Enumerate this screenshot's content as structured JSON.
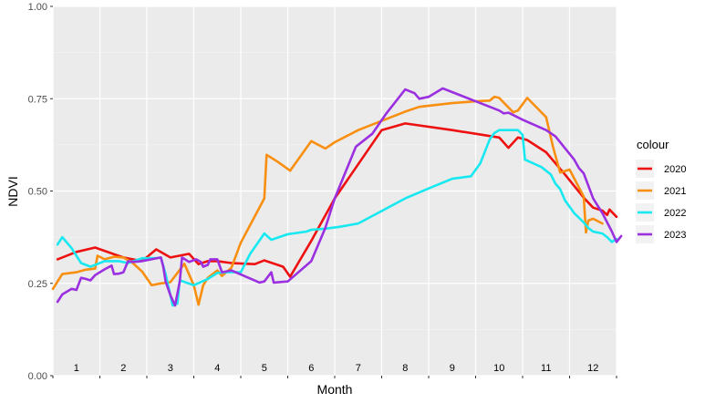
{
  "chart_data": {
    "type": "line",
    "xlabel": "Month",
    "ylabel": "NDVI",
    "xlim": [
      0.5,
      12.5
    ],
    "ylim": [
      0,
      1
    ],
    "y_ticks": [
      {
        "value": 0.0,
        "label": "0.00"
      },
      {
        "value": 0.25,
        "label": "0.25"
      },
      {
        "value": 0.5,
        "label": "0.50"
      },
      {
        "value": 0.75,
        "label": "0.75"
      },
      {
        "value": 1.0,
        "label": "1.00"
      }
    ],
    "month_labels": [
      "1",
      "2",
      "3",
      "4",
      "5",
      "6",
      "7",
      "8",
      "9",
      "10",
      "11",
      "12"
    ],
    "grid": true,
    "legend": {
      "title": "colour",
      "position": "right"
    },
    "series": [
      {
        "name": "2020",
        "color": "#ee1111",
        "points": [
          [
            0.6,
            0.315
          ],
          [
            1.0,
            0.335
          ],
          [
            1.4,
            0.347
          ],
          [
            2.0,
            0.32
          ],
          [
            2.4,
            0.31
          ],
          [
            2.7,
            0.342
          ],
          [
            3.0,
            0.32
          ],
          [
            3.4,
            0.33
          ],
          [
            3.6,
            0.302
          ],
          [
            3.8,
            0.31
          ],
          [
            4.0,
            0.31
          ],
          [
            4.3,
            0.305
          ],
          [
            4.8,
            0.302
          ],
          [
            5.0,
            0.312
          ],
          [
            5.4,
            0.295
          ],
          [
            5.55,
            0.268
          ],
          [
            6.0,
            0.365
          ],
          [
            6.5,
            0.48
          ],
          [
            7.5,
            0.665
          ],
          [
            8.0,
            0.683
          ],
          [
            9.0,
            0.665
          ],
          [
            10.0,
            0.645
          ],
          [
            10.2,
            0.617
          ],
          [
            10.4,
            0.645
          ],
          [
            10.6,
            0.638
          ],
          [
            11.0,
            0.605
          ],
          [
            11.4,
            0.545
          ],
          [
            11.8,
            0.482
          ],
          [
            12.0,
            0.455
          ],
          [
            12.2,
            0.447
          ],
          [
            12.3,
            0.435
          ],
          [
            12.35,
            0.45
          ],
          [
            12.5,
            0.43
          ]
        ]
      },
      {
        "name": "2021",
        "color": "#f98f10",
        "points": [
          [
            0.5,
            0.235
          ],
          [
            0.7,
            0.275
          ],
          [
            1.0,
            0.28
          ],
          [
            1.2,
            0.287
          ],
          [
            1.4,
            0.29
          ],
          [
            1.45,
            0.325
          ],
          [
            1.6,
            0.315
          ],
          [
            1.8,
            0.322
          ],
          [
            2.0,
            0.32
          ],
          [
            2.2,
            0.305
          ],
          [
            2.4,
            0.282
          ],
          [
            2.6,
            0.245
          ],
          [
            2.8,
            0.25
          ],
          [
            3.0,
            0.253
          ],
          [
            3.3,
            0.303
          ],
          [
            3.5,
            0.245
          ],
          [
            3.6,
            0.192
          ],
          [
            3.7,
            0.245
          ],
          [
            3.8,
            0.265
          ],
          [
            4.0,
            0.285
          ],
          [
            4.1,
            0.27
          ],
          [
            4.3,
            0.292
          ],
          [
            4.5,
            0.36
          ],
          [
            5.0,
            0.48
          ],
          [
            5.05,
            0.598
          ],
          [
            5.3,
            0.578
          ],
          [
            5.55,
            0.555
          ],
          [
            6.0,
            0.635
          ],
          [
            6.3,
            0.615
          ],
          [
            6.5,
            0.632
          ],
          [
            7.0,
            0.665
          ],
          [
            7.5,
            0.69
          ],
          [
            8.0,
            0.715
          ],
          [
            8.3,
            0.728
          ],
          [
            9.0,
            0.738
          ],
          [
            9.5,
            0.743
          ],
          [
            9.8,
            0.745
          ],
          [
            9.9,
            0.755
          ],
          [
            10.0,
            0.752
          ],
          [
            10.3,
            0.713
          ],
          [
            10.4,
            0.718
          ],
          [
            10.6,
            0.752
          ],
          [
            11.0,
            0.7
          ],
          [
            11.15,
            0.618
          ],
          [
            11.3,
            0.55
          ],
          [
            11.5,
            0.558
          ],
          [
            11.8,
            0.485
          ],
          [
            11.85,
            0.388
          ],
          [
            11.9,
            0.42
          ],
          [
            12.0,
            0.425
          ],
          [
            12.2,
            0.412
          ]
        ]
      },
      {
        "name": "2022",
        "color": "#18e8f0",
        "points": [
          [
            0.6,
            0.355
          ],
          [
            0.7,
            0.375
          ],
          [
            0.9,
            0.345
          ],
          [
            1.1,
            0.305
          ],
          [
            1.3,
            0.295
          ],
          [
            1.6,
            0.31
          ],
          [
            1.9,
            0.31
          ],
          [
            2.1,
            0.305
          ],
          [
            2.4,
            0.318
          ],
          [
            2.7,
            0.318
          ],
          [
            2.8,
            0.32
          ],
          [
            2.9,
            0.275
          ],
          [
            3.0,
            0.218
          ],
          [
            3.05,
            0.19
          ],
          [
            3.15,
            0.195
          ],
          [
            3.2,
            0.258
          ],
          [
            3.5,
            0.245
          ],
          [
            3.8,
            0.262
          ],
          [
            4.0,
            0.278
          ],
          [
            4.2,
            0.28
          ],
          [
            4.5,
            0.28
          ],
          [
            4.7,
            0.33
          ],
          [
            5.0,
            0.385
          ],
          [
            5.15,
            0.368
          ],
          [
            5.5,
            0.383
          ],
          [
            5.9,
            0.39
          ],
          [
            6.0,
            0.395
          ],
          [
            6.3,
            0.398
          ],
          [
            6.6,
            0.403
          ],
          [
            7.0,
            0.412
          ],
          [
            8.0,
            0.48
          ],
          [
            8.5,
            0.507
          ],
          [
            9.0,
            0.533
          ],
          [
            9.4,
            0.54
          ],
          [
            9.6,
            0.575
          ],
          [
            9.8,
            0.64
          ],
          [
            9.9,
            0.657
          ],
          [
            10.0,
            0.665
          ],
          [
            10.2,
            0.665
          ],
          [
            10.4,
            0.665
          ],
          [
            10.5,
            0.652
          ],
          [
            10.55,
            0.585
          ],
          [
            10.9,
            0.565
          ],
          [
            11.1,
            0.545
          ],
          [
            11.2,
            0.52
          ],
          [
            11.3,
            0.505
          ],
          [
            11.4,
            0.475
          ],
          [
            11.6,
            0.44
          ],
          [
            11.8,
            0.415
          ],
          [
            11.9,
            0.4
          ],
          [
            12.0,
            0.39
          ],
          [
            12.2,
            0.385
          ],
          [
            12.3,
            0.375
          ],
          [
            12.4,
            0.362
          ],
          [
            12.5,
            0.37
          ]
        ]
      },
      {
        "name": "2023",
        "color": "#9b30e0",
        "points": [
          [
            0.6,
            0.2
          ],
          [
            0.7,
            0.22
          ],
          [
            0.9,
            0.235
          ],
          [
            1.0,
            0.232
          ],
          [
            1.1,
            0.265
          ],
          [
            1.2,
            0.262
          ],
          [
            1.3,
            0.258
          ],
          [
            1.4,
            0.272
          ],
          [
            1.6,
            0.288
          ],
          [
            1.75,
            0.298
          ],
          [
            1.8,
            0.275
          ],
          [
            1.9,
            0.276
          ],
          [
            2.0,
            0.28
          ],
          [
            2.1,
            0.31
          ],
          [
            2.2,
            0.308
          ],
          [
            2.4,
            0.31
          ],
          [
            2.6,
            0.315
          ],
          [
            2.8,
            0.32
          ],
          [
            2.85,
            0.295
          ],
          [
            2.9,
            0.255
          ],
          [
            3.0,
            0.218
          ],
          [
            3.1,
            0.19
          ],
          [
            3.2,
            0.255
          ],
          [
            3.25,
            0.32
          ],
          [
            3.4,
            0.308
          ],
          [
            3.55,
            0.315
          ],
          [
            3.65,
            0.308
          ],
          [
            3.7,
            0.295
          ],
          [
            3.8,
            0.3
          ],
          [
            3.85,
            0.315
          ],
          [
            4.0,
            0.315
          ],
          [
            4.1,
            0.28
          ],
          [
            4.3,
            0.285
          ],
          [
            4.9,
            0.252
          ],
          [
            5.0,
            0.255
          ],
          [
            5.15,
            0.28
          ],
          [
            5.2,
            0.252
          ],
          [
            5.5,
            0.255
          ],
          [
            6.0,
            0.31
          ],
          [
            6.3,
            0.4
          ],
          [
            6.5,
            0.48
          ],
          [
            6.95,
            0.62
          ],
          [
            7.1,
            0.635
          ],
          [
            7.3,
            0.655
          ],
          [
            7.6,
            0.71
          ],
          [
            8.0,
            0.775
          ],
          [
            8.2,
            0.765
          ],
          [
            8.3,
            0.75
          ],
          [
            8.5,
            0.755
          ],
          [
            8.8,
            0.778
          ],
          [
            9.0,
            0.768
          ],
          [
            9.5,
            0.743
          ],
          [
            10.0,
            0.718
          ],
          [
            10.1,
            0.71
          ],
          [
            10.2,
            0.712
          ],
          [
            10.5,
            0.693
          ],
          [
            11.0,
            0.665
          ],
          [
            11.2,
            0.648
          ],
          [
            11.6,
            0.585
          ],
          [
            11.7,
            0.562
          ],
          [
            11.8,
            0.548
          ],
          [
            12.0,
            0.48
          ],
          [
            12.2,
            0.44
          ],
          [
            12.4,
            0.39
          ],
          [
            12.5,
            0.362
          ],
          [
            12.6,
            0.378
          ]
        ]
      }
    ]
  }
}
